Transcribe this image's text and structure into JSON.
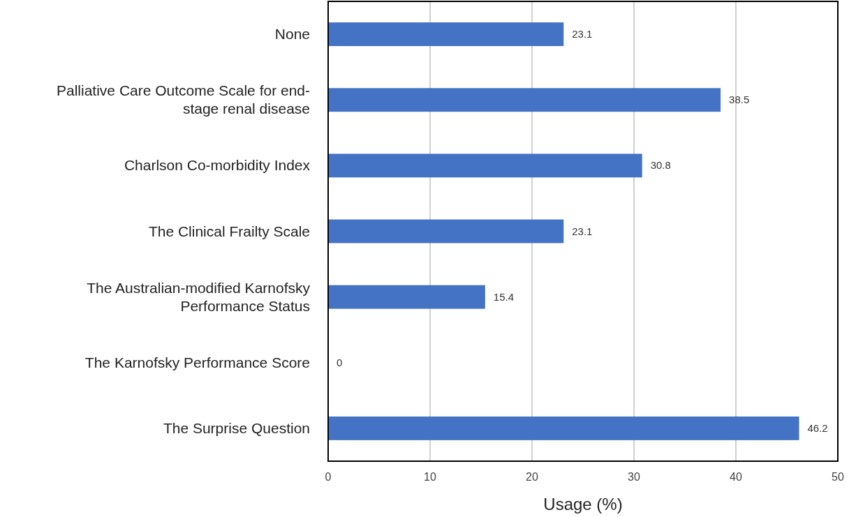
{
  "chart_data": {
    "type": "bar",
    "orientation": "horizontal",
    "xlabel": "Usage (%)",
    "categories": [
      "None",
      "Palliative Care Outcome Scale for end-stage renal disease",
      "Charlson Co-morbidity Index",
      "The Clinical Frailty Scale",
      "The Australian-modified Karnofsky Performance Status",
      "The Karnofsky Performance Score",
      "The Surprise Question"
    ],
    "values": [
      23.1,
      38.5,
      30.8,
      23.1,
      15.4,
      0,
      46.2
    ],
    "color": "#4472c4",
    "xlim": [
      0,
      50
    ],
    "xticks": [
      0,
      10,
      20,
      30,
      40,
      50
    ],
    "grid": "x",
    "data_labels": true
  }
}
